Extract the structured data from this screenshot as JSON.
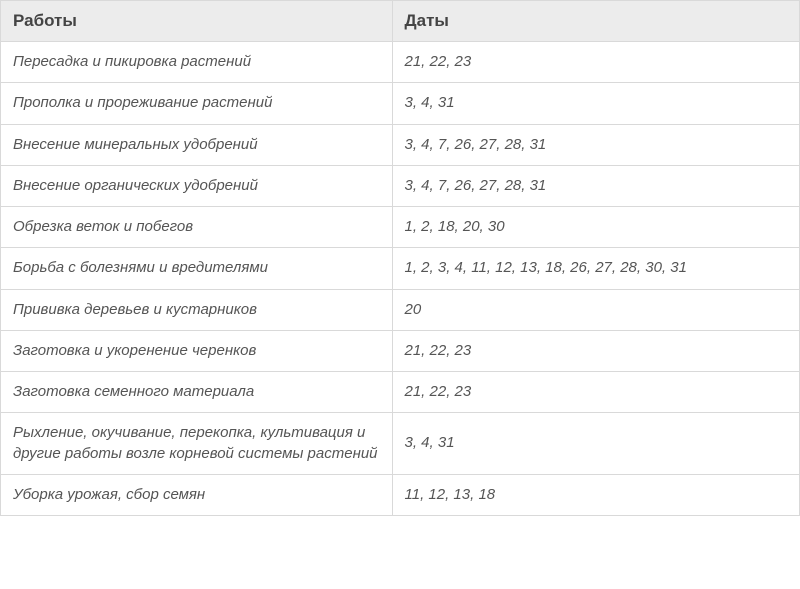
{
  "table": {
    "type": "table",
    "background_color": "#ffffff",
    "header_bg": "#ececec",
    "border_color": "#d9d9d9",
    "header_text_color": "#444444",
    "body_text_color": "#555555",
    "header_font_weight": "700",
    "body_font_style": "italic",
    "header_fontsize": 17,
    "body_fontsize": 15,
    "column_widths": [
      "49%",
      "51%"
    ],
    "columns": [
      "Работы",
      "Даты"
    ],
    "rows": [
      {
        "work": "Пересадка и пикировка растений",
        "dates": "21, 22, 23"
      },
      {
        "work": "Прополка и прореживание растений",
        "dates": "3, 4, 31"
      },
      {
        "work": "Внесение минеральных удобрений",
        "dates": "3, 4, 7, 26, 27, 28, 31"
      },
      {
        "work": "Внесение органических удобрений",
        "dates": "3, 4, 7, 26, 27, 28, 31"
      },
      {
        "work": "Обрезка веток и побегов",
        "dates": "1, 2, 18, 20, 30"
      },
      {
        "work": "Борьба с болезнями и вредителями",
        "dates": "1, 2, 3, 4, 11, 12, 13, 18, 26, 27, 28, 30, 31"
      },
      {
        "work": "Прививка деревьев и кустарников",
        "dates": "20"
      },
      {
        "work": "Заготовка и укоренение черенков",
        "dates": "21, 22, 23"
      },
      {
        "work": "Заготовка семенного материала",
        "dates": "21, 22, 23"
      },
      {
        "work": "Рыхление, окучивание, перекопка, культивация и другие работы возле корневой системы растений",
        "dates": "3, 4, 31"
      },
      {
        "work": "Уборка урожая, сбор семян",
        "dates": "11, 12, 13, 18"
      }
    ]
  }
}
